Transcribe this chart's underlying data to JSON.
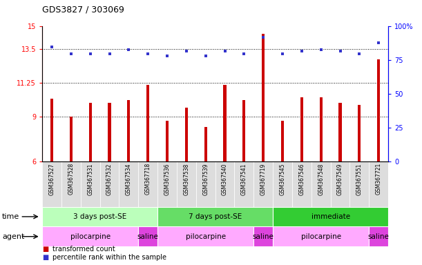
{
  "title": "GDS3827 / 303069",
  "samples": [
    "GSM367527",
    "GSM367528",
    "GSM367531",
    "GSM367532",
    "GSM367534",
    "GSM367718",
    "GSM367536",
    "GSM367538",
    "GSM367539",
    "GSM367540",
    "GSM367541",
    "GSM367719",
    "GSM367545",
    "GSM367546",
    "GSM367548",
    "GSM367549",
    "GSM367551",
    "GSM367721"
  ],
  "bar_values": [
    10.2,
    9.0,
    9.9,
    9.9,
    10.1,
    11.1,
    8.7,
    9.6,
    8.3,
    11.1,
    10.1,
    14.5,
    8.7,
    10.3,
    10.3,
    9.9,
    9.8,
    12.8
  ],
  "percentile_values": [
    85,
    80,
    80,
    80,
    83,
    80,
    78,
    82,
    78,
    82,
    80,
    92,
    80,
    82,
    83,
    82,
    80,
    88
  ],
  "bar_color": "#cc0000",
  "dot_color": "#3333cc",
  "ylim_left": [
    6,
    15
  ],
  "ylim_right": [
    0,
    100
  ],
  "yticks_left": [
    6,
    9,
    11.25,
    13.5,
    15
  ],
  "ytick_labels_left": [
    "6",
    "9",
    "11.25",
    "13.5",
    "15"
  ],
  "yticks_right": [
    0,
    25,
    50,
    75,
    100
  ],
  "ytick_labels_right": [
    "0",
    "25",
    "50",
    "75",
    "100%"
  ],
  "hlines": [
    9,
    11.25,
    13.5
  ],
  "time_groups": [
    {
      "label": "3 days post-SE",
      "start": 0,
      "end": 5,
      "color": "#bbffbb"
    },
    {
      "label": "7 days post-SE",
      "start": 6,
      "end": 11,
      "color": "#66dd66"
    },
    {
      "label": "immediate",
      "start": 12,
      "end": 17,
      "color": "#33cc33"
    }
  ],
  "agent_groups": [
    {
      "label": "pilocarpine",
      "start": 0,
      "end": 4,
      "color": "#ffaaff"
    },
    {
      "label": "saline",
      "start": 5,
      "end": 5,
      "color": "#dd44dd"
    },
    {
      "label": "pilocarpine",
      "start": 6,
      "end": 10,
      "color": "#ffaaff"
    },
    {
      "label": "saline",
      "start": 11,
      "end": 11,
      "color": "#dd44dd"
    },
    {
      "label": "pilocarpine",
      "start": 12,
      "end": 16,
      "color": "#ffaaff"
    },
    {
      "label": "saline",
      "start": 17,
      "end": 17,
      "color": "#dd44dd"
    }
  ],
  "legend_bar_color": "#cc0000",
  "legend_dot_color": "#3333cc",
  "legend_bar_label": "transformed count",
  "legend_dot_label": "percentile rank within the sample",
  "background_color": "#ffffff",
  "plot_bg_color": "#ffffff",
  "sample_bg_color": "#dddddd"
}
